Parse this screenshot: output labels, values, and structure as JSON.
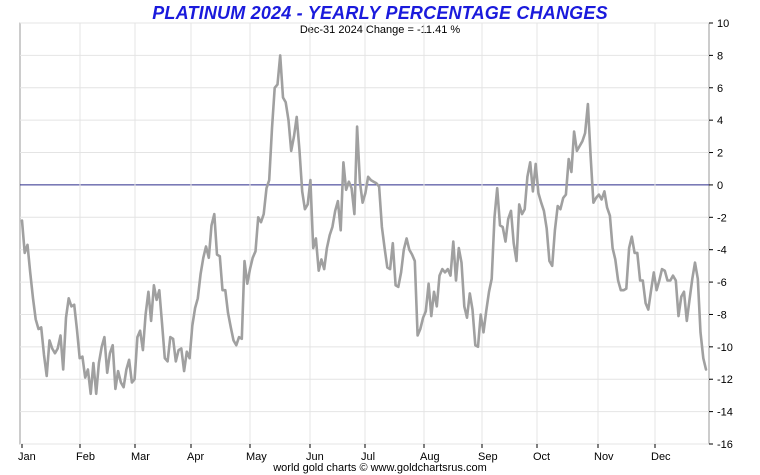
{
  "chart_data": {
    "type": "line",
    "title": "PLATINUM 2024 - YEARLY PERCENTAGE CHANGES",
    "subtitle": "Dec-31  2024   Change = -11.41 %",
    "footer": "world gold charts © www.goldchartsrus.com",
    "ylim": [
      -16,
      10
    ],
    "y_ticks": [
      "10",
      "8",
      "6",
      "4",
      "2",
      "0",
      "-2",
      "-4",
      "-6",
      "-8",
      "-10",
      "-12",
      "-14",
      "-16"
    ],
    "x_month_labels": [
      "Jan",
      "Feb",
      "Mar",
      "Apr",
      "May",
      "Jun",
      "Jul",
      "Aug",
      "Sep",
      "Oct",
      "Nov",
      "Dec"
    ],
    "grid": true,
    "colors": {
      "line": "#a0a0a0",
      "zero_line": "#2a2a8a",
      "grid": "#e4e4e4",
      "title": "#1a1adc"
    },
    "series": [
      {
        "values": [
          -2.2,
          -4.2,
          -3.7,
          -5.4,
          -7.0,
          -8.3,
          -8.9,
          -8.8,
          -10.5,
          -11.8,
          -9.6,
          -10.1,
          -10.4,
          -10.1,
          -9.3,
          -11.4,
          -8.2,
          -7.0,
          -7.5,
          -7.4,
          -8.9,
          -10.7,
          -10.6,
          -11.9,
          -11.4,
          -12.9,
          -11.0,
          -12.9,
          -11.0,
          -10.0,
          -9.4,
          -11.6,
          -10.4,
          -9.9,
          -12.6,
          -11.5,
          -12.2,
          -12.5,
          -11.4,
          -10.8,
          -12.2,
          -12.0,
          -9.4,
          -9.0,
          -10.2,
          -8.0,
          -6.6,
          -8.4,
          -6.2,
          -7.1,
          -6.5,
          -8.6,
          -10.7,
          -10.9,
          -9.4,
          -9.5,
          -10.9,
          -10.2,
          -10.1,
          -11.5,
          -10.3,
          -10.7,
          -8.7,
          -7.6,
          -7.0,
          -5.5,
          -4.5,
          -3.8,
          -4.5,
          -2.5,
          -1.8,
          -4.3,
          -4.4,
          -6.5,
          -6.5,
          -7.9,
          -8.8,
          -9.6,
          -9.9,
          -9.4,
          -9.5,
          -4.7,
          -6.1,
          -5.2,
          -4.5,
          -4.1,
          -2.0,
          -2.3,
          -1.8,
          -0.2,
          0.3,
          3.5,
          6.0,
          6.2,
          8.0,
          5.4,
          5.1,
          4.0,
          2.1,
          3.0,
          4.2,
          2.2,
          -0.4,
          -1.5,
          -1.2,
          0.3,
          -3.9,
          -3.3,
          -5.3,
          -4.6,
          -5.2,
          -3.9,
          -3.1,
          -2.6,
          -1.6,
          -1.0,
          -2.8,
          1.4,
          -0.3,
          0.2,
          -0.2,
          -1.8,
          3.6,
          0.2,
          -1.1,
          -0.5,
          0.5,
          0.3,
          0.2,
          0.1,
          -0.1,
          -2.6,
          -3.9,
          -5.1,
          -5.2,
          -3.6,
          -6.2,
          -6.3,
          -5.4,
          -4.0,
          -3.3,
          -4.0,
          -4.3,
          -4.7,
          -9.3,
          -8.9,
          -8.2,
          -7.8,
          -6.1,
          -8.1,
          -6.6,
          -7.5,
          -5.6,
          -5.2,
          -5.4,
          -5.2,
          -5.6,
          -3.5,
          -5.9,
          -3.9,
          -4.8,
          -7.5,
          -8.2,
          -6.7,
          -7.7,
          -9.9,
          -10.0,
          -8.0,
          -9.1,
          -7.8,
          -6.6,
          -5.8,
          -2.0,
          -0.2,
          -2.5,
          -2.6,
          -3.5,
          -2.1,
          -1.6,
          -3.6,
          -4.7,
          -1.2,
          -1.8,
          -1.5,
          0.5,
          1.4,
          -0.4,
          1.3,
          -0.5,
          -1.1,
          -1.6,
          -2.7,
          -4.7,
          -5.0,
          -2.8,
          -1.3,
          -1.5,
          -0.8,
          -0.6,
          1.6,
          0.8,
          3.3,
          2.1,
          2.4,
          2.7,
          3.2,
          5.0,
          1.8,
          -1.1,
          -0.8,
          -0.6,
          -0.9,
          -0.4,
          -1.4,
          -1.9,
          -3.9,
          -4.6,
          -5.9,
          -6.5,
          -6.5,
          -6.4,
          -3.9,
          -3.2,
          -4.2,
          -4.2,
          -5.9,
          -5.9,
          -7.3,
          -7.7,
          -6.5,
          -5.4,
          -6.5,
          -5.9,
          -5.2,
          -5.3,
          -5.9,
          -5.9,
          -5.6,
          -5.9,
          -8.1,
          -6.9,
          -6.6,
          -8.4,
          -7.1,
          -5.8,
          -4.8,
          -5.8,
          -9.1,
          -10.7,
          -11.4
        ]
      }
    ]
  }
}
